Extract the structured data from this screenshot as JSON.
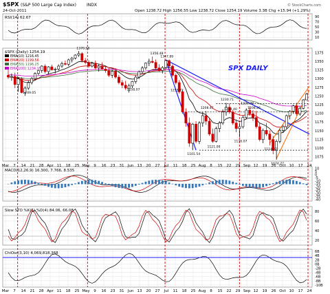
{
  "header": {
    "symbol": "$SPX",
    "name": "(S&P 500 Large Cap Index)",
    "exchange": "INDX",
    "date": "24-Oct-2011",
    "ohlc": "Open 1238.72  High 1256.55  Low 1238.72  Close 1254.19  Volume 3.3B  Chg +15.94 (+1.29%)",
    "watermark": "© StockCharts.com"
  },
  "colors": {
    "price_bar": "#000000",
    "down_bar": "#cc0000",
    "ema10": "#000000",
    "ema20": "#cc0000",
    "ema50": "#3a6b3a",
    "ema200": "#cc00cc",
    "trendline": "#1a1aff",
    "channel": "#ff6600",
    "cycle_line": "#cc0000",
    "macd_hist": "#3377bb",
    "rsi_fill": "#ff0000"
  },
  "panels": {
    "rsi": {
      "legend": "RSI(14) 62.67",
      "ticks": [
        "90",
        "70",
        "50",
        "30",
        "10"
      ]
    },
    "price": {
      "legend": "$SPX (Daily) 1254.19",
      "ema_labels": [
        "EMA(10) 1216.45",
        "EMA(20) 1199.56",
        "EMA(50) 1196.25",
        "EMA(200) 1234.15"
      ],
      "annotation": "SPX DAILY",
      "ticks": [
        "1375",
        "1350",
        "1325",
        "1300",
        "1275",
        "1250",
        "1225",
        "1200",
        "1175",
        "1150",
        "1125",
        "1100",
        "1075"
      ]
    },
    "macd": {
      "legend": "MACD(12,26,9) 16.300, 7.766, 8.535",
      "ticks": [
        "10",
        "5",
        "0",
        "-5",
        "-10",
        "-15",
        "-20",
        "-25",
        "-30",
        "-35",
        "-40"
      ]
    },
    "sto": {
      "legend": "Slow STO %K(5) %D(4) 84.06, 66.08",
      "ticks": [
        "80",
        "60",
        "40",
        "20"
      ]
    },
    "chaikin": {
      "legend": "ChiOsc(3,10) 4,069,818,368",
      "ticks": [
        "6B",
        "4B",
        "2B",
        "0B",
        "-2B",
        "-4B",
        "-6B",
        "-8B",
        "-10B"
      ]
    }
  },
  "x_axis": [
    "Mar",
    "7",
    "14",
    "21",
    "28",
    "Apr",
    "11",
    "18",
    "25",
    "May",
    "9",
    "16",
    "23",
    "31",
    "Jun",
    "13",
    "20",
    "27",
    "Jul",
    "11",
    "18",
    "25",
    "Aug",
    "8",
    "15",
    "22",
    "29",
    "Sep",
    "12",
    "19",
    "26",
    "Oct",
    "10",
    "17",
    "24"
  ],
  "chart_data": {
    "type": "ohlc",
    "title": "$SPX (S&P 500 Large Cap Index) Daily",
    "ylim": [
      1075,
      1375
    ],
    "price_labels": [
      {
        "x": "Mar 16",
        "y": 1249.05,
        "text": "1249.05"
      },
      {
        "x": "Apr 29",
        "y": 1370.58,
        "text": "1370.58"
      },
      {
        "x": "Jun 16",
        "y": 1258.07,
        "text": "1258.07"
      },
      {
        "x": "Jul 7",
        "y": 1356.48,
        "text": "1356.48"
      },
      {
        "x": "Jul 21",
        "y": 1347.89,
        "text": "1347.89"
      },
      {
        "x": "Aug 2",
        "y": 1255.72,
        "text": "1255.72"
      },
      {
        "x": "Aug 9",
        "y": 1101.54,
        "text": "1101.54"
      },
      {
        "x": "Aug 16",
        "y": 1208.47,
        "text": "1208.47"
      },
      {
        "x": "Aug 22",
        "y": 1121.09,
        "text": "1121.09"
      },
      {
        "x": "Aug 31",
        "y": 1230.71,
        "text": "1230.71"
      },
      {
        "x": "Sep 1",
        "y": 1204.4,
        "text": "1204.40"
      },
      {
        "x": "Sep 12",
        "y": 1136.07,
        "text": "1136.07"
      },
      {
        "x": "Sep 16",
        "y": 1220.39,
        "text": "1220.39"
      },
      {
        "x": "Sep 20",
        "y": 1208.26,
        "text": "1208.26"
      },
      {
        "x": "Sep 30",
        "y": 1114.22,
        "text": "1114.22"
      },
      {
        "x": "Oct 4",
        "y": 1074.77,
        "text": "1074.77"
      }
    ],
    "ohlc_series": [
      [
        1305,
        1320,
        1295,
        1300
      ],
      [
        1300,
        1310,
        1290,
        1302
      ],
      [
        1302,
        1312,
        1270,
        1280
      ],
      [
        1280,
        1300,
        1260,
        1295
      ],
      [
        1295,
        1300,
        1256,
        1258
      ],
      [
        1258,
        1275,
        1249,
        1270
      ],
      [
        1270,
        1290,
        1265,
        1285
      ],
      [
        1285,
        1300,
        1280,
        1296
      ],
      [
        1296,
        1313,
        1292,
        1310
      ],
      [
        1310,
        1320,
        1305,
        1318
      ],
      [
        1318,
        1332,
        1312,
        1330
      ],
      [
        1330,
        1335,
        1310,
        1315
      ],
      [
        1315,
        1330,
        1308,
        1328
      ],
      [
        1328,
        1334,
        1318,
        1320
      ],
      [
        1320,
        1326,
        1310,
        1322
      ],
      [
        1322,
        1335,
        1318,
        1330
      ],
      [
        1330,
        1342,
        1325,
        1337
      ],
      [
        1337,
        1345,
        1332,
        1335
      ],
      [
        1335,
        1350,
        1330,
        1347
      ],
      [
        1347,
        1355,
        1340,
        1352
      ],
      [
        1352,
        1362,
        1348,
        1360
      ],
      [
        1360,
        1371,
        1355,
        1364
      ],
      [
        1364,
        1368,
        1340,
        1345
      ],
      [
        1345,
        1352,
        1335,
        1340
      ],
      [
        1340,
        1346,
        1325,
        1330
      ],
      [
        1330,
        1342,
        1326,
        1338
      ],
      [
        1338,
        1345,
        1320,
        1325
      ],
      [
        1325,
        1335,
        1315,
        1330
      ],
      [
        1330,
        1340,
        1320,
        1322
      ],
      [
        1322,
        1330,
        1312,
        1318
      ],
      [
        1318,
        1325,
        1300,
        1305
      ],
      [
        1305,
        1320,
        1298,
        1316
      ],
      [
        1316,
        1322,
        1296,
        1300
      ],
      [
        1300,
        1306,
        1280,
        1285
      ],
      [
        1285,
        1292,
        1270,
        1278
      ],
      [
        1278,
        1290,
        1265,
        1270
      ],
      [
        1270,
        1282,
        1258,
        1276
      ],
      [
        1276,
        1290,
        1270,
        1288
      ],
      [
        1288,
        1305,
        1282,
        1300
      ],
      [
        1300,
        1318,
        1295,
        1315
      ],
      [
        1315,
        1330,
        1310,
        1325
      ],
      [
        1325,
        1340,
        1320,
        1338
      ],
      [
        1338,
        1350,
        1330,
        1343
      ],
      [
        1343,
        1356,
        1338,
        1340
      ],
      [
        1340,
        1348,
        1322,
        1325
      ],
      [
        1325,
        1335,
        1315,
        1318
      ],
      [
        1318,
        1330,
        1310,
        1326
      ],
      [
        1326,
        1347,
        1322,
        1345
      ],
      [
        1345,
        1348,
        1325,
        1330
      ],
      [
        1330,
        1335,
        1300,
        1305
      ],
      [
        1305,
        1310,
        1280,
        1285
      ],
      [
        1285,
        1292,
        1255,
        1260
      ],
      [
        1260,
        1265,
        1200,
        1205
      ],
      [
        1205,
        1215,
        1165,
        1175
      ],
      [
        1175,
        1190,
        1110,
        1120
      ],
      [
        1120,
        1175,
        1101,
        1172
      ],
      [
        1172,
        1180,
        1120,
        1125
      ],
      [
        1125,
        1180,
        1118,
        1175
      ],
      [
        1175,
        1205,
        1165,
        1195
      ],
      [
        1195,
        1208,
        1170,
        1180
      ],
      [
        1180,
        1188,
        1140,
        1145
      ],
      [
        1145,
        1160,
        1121,
        1125
      ],
      [
        1125,
        1165,
        1122,
        1160
      ],
      [
        1160,
        1180,
        1150,
        1175
      ],
      [
        1175,
        1212,
        1170,
        1205
      ],
      [
        1205,
        1230,
        1195,
        1218
      ],
      [
        1218,
        1228,
        1200,
        1205
      ],
      [
        1205,
        1210,
        1170,
        1175
      ],
      [
        1175,
        1185,
        1150,
        1160
      ],
      [
        1160,
        1175,
        1136,
        1165
      ],
      [
        1165,
        1195,
        1160,
        1190
      ],
      [
        1190,
        1215,
        1185,
        1210
      ],
      [
        1210,
        1220,
        1195,
        1200
      ],
      [
        1200,
        1210,
        1180,
        1190
      ],
      [
        1190,
        1208,
        1160,
        1165
      ],
      [
        1165,
        1175,
        1125,
        1130
      ],
      [
        1130,
        1160,
        1120,
        1155
      ],
      [
        1155,
        1175,
        1140,
        1145
      ],
      [
        1145,
        1155,
        1114,
        1130
      ],
      [
        1130,
        1140,
        1090,
        1100
      ],
      [
        1100,
        1130,
        1075,
        1125
      ],
      [
        1125,
        1160,
        1120,
        1155
      ],
      [
        1155,
        1170,
        1148,
        1165
      ],
      [
        1165,
        1198,
        1160,
        1195
      ],
      [
        1195,
        1210,
        1185,
        1207
      ],
      [
        1207,
        1225,
        1200,
        1222
      ],
      [
        1222,
        1230,
        1195,
        1200
      ],
      [
        1200,
        1220,
        1195,
        1215
      ],
      [
        1215,
        1240,
        1212,
        1238
      ],
      [
        1238,
        1257,
        1238,
        1254
      ]
    ]
  }
}
